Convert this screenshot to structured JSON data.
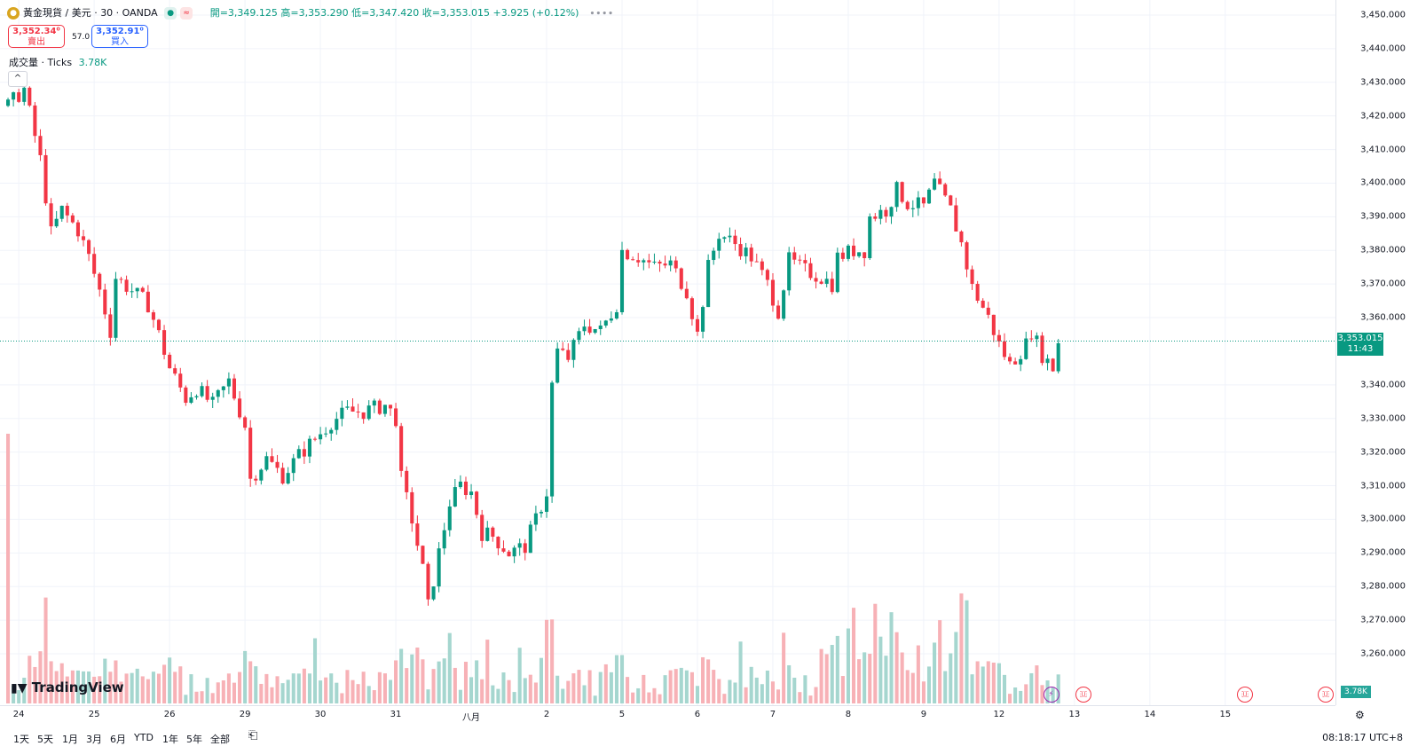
{
  "header": {
    "symbol_icon": "gold-coin-icon",
    "symbol": "黃金現貨 / 美元 · 30 · OANDA",
    "badge_1": "≈",
    "ohlc": "開=3,349.125 高=3,353.290 低=3,347.420 收=3,353.015 +3.925 (+0.12%)",
    "more": "∙∙∙∙"
  },
  "trade": {
    "sell_price": "3,352.34⁰",
    "sell_label": "賣出",
    "spread": "57.0",
    "buy_price": "3,352.91⁰",
    "buy_label": "買入"
  },
  "volume_legend": {
    "label": "成交量 · Ticks",
    "value": "3.78K"
  },
  "logo": "TradingView",
  "price_flag": {
    "price": "3,353.015",
    "countdown": "11:43"
  },
  "volume_flag": "3.78K",
  "colors": {
    "up": "#089981",
    "down": "#f23645",
    "volume_up": "#a5d6cf",
    "volume_down": "#f7b1b6"
  },
  "bottom_bar": {
    "ranges": [
      "1天",
      "5天",
      "1月",
      "3月",
      "6月",
      "YTD",
      "1年",
      "5年",
      "全部"
    ],
    "clock": "08:18:17 UTC+8"
  },
  "chart_data": {
    "type": "candlestick",
    "y_axis": {
      "ticks": [
        "3,450.000",
        "3,440.000",
        "3,430.000",
        "3,420.000",
        "3,410.000",
        "3,400.000",
        "3,390.000",
        "3,380.000",
        "3,370.000",
        "3,360.000",
        "3,340.000",
        "3,330.000",
        "3,320.000",
        "3,310.000",
        "3,300.000",
        "3,290.000",
        "3,280.000",
        "3,270.000",
        "3,260.000"
      ],
      "range": [
        3255,
        3453
      ]
    },
    "x_axis": {
      "labels": [
        "24",
        "25",
        "26",
        "29",
        "30",
        "31",
        "八月",
        "2",
        "5",
        "6",
        "7",
        "8",
        "9",
        "12",
        "13",
        "14",
        "15"
      ],
      "label_index": [
        2,
        16,
        30,
        44,
        58,
        72,
        86,
        100,
        114,
        128,
        142,
        156,
        170,
        184,
        198,
        212,
        226
      ]
    },
    "bar_count": 245,
    "close_path": [
      [
        0,
        3423
      ],
      [
        3,
        3428
      ],
      [
        6,
        3407
      ],
      [
        8,
        3385
      ],
      [
        10,
        3392
      ],
      [
        13,
        3386
      ],
      [
        15,
        3378
      ],
      [
        17,
        3368
      ],
      [
        19,
        3356
      ],
      [
        20,
        3372
      ],
      [
        23,
        3368
      ],
      [
        26,
        3364
      ],
      [
        28,
        3355
      ],
      [
        30,
        3345
      ],
      [
        33,
        3336
      ],
      [
        35,
        3339
      ],
      [
        38,
        3334
      ],
      [
        41,
        3341
      ],
      [
        44,
        3328
      ],
      [
        45,
        3312
      ],
      [
        48,
        3318
      ],
      [
        51,
        3313
      ],
      [
        54,
        3319
      ],
      [
        57,
        3324
      ],
      [
        60,
        3329
      ],
      [
        63,
        3332
      ],
      [
        66,
        3332
      ],
      [
        70,
        3334
      ],
      [
        72,
        3330
      ],
      [
        73,
        3312
      ],
      [
        75,
        3300
      ],
      [
        77,
        3285
      ],
      [
        78,
        3274
      ],
      [
        80,
        3290
      ],
      [
        82,
        3305
      ],
      [
        84,
        3310
      ],
      [
        86,
        3308
      ],
      [
        88,
        3296
      ],
      [
        90,
        3295
      ],
      [
        93,
        3290
      ],
      [
        96,
        3292
      ],
      [
        98,
        3300
      ],
      [
        100,
        3308
      ],
      [
        101,
        3340
      ],
      [
        102,
        3350
      ],
      [
        104,
        3348
      ],
      [
        107,
        3358
      ],
      [
        110,
        3356
      ],
      [
        113,
        3364
      ],
      [
        114,
        3380
      ],
      [
        117,
        3378
      ],
      [
        120,
        3375
      ],
      [
        123,
        3376
      ],
      [
        126,
        3368
      ],
      [
        128,
        3355
      ],
      [
        130,
        3375
      ],
      [
        132,
        3385
      ],
      [
        135,
        3382
      ],
      [
        138,
        3378
      ],
      [
        141,
        3370
      ],
      [
        143,
        3362
      ],
      [
        145,
        3377
      ],
      [
        148,
        3374
      ],
      [
        151,
        3372
      ],
      [
        153,
        3370
      ],
      [
        154,
        3378
      ],
      [
        157,
        3380
      ],
      [
        159,
        3380
      ],
      [
        160,
        3390
      ],
      [
        163,
        3392
      ],
      [
        165,
        3398
      ],
      [
        167,
        3394
      ],
      [
        170,
        3393
      ],
      [
        172,
        3400
      ],
      [
        175,
        3392
      ],
      [
        177,
        3382
      ],
      [
        179,
        3369
      ],
      [
        182,
        3360
      ],
      [
        184,
        3352
      ],
      [
        186,
        3346
      ],
      [
        187,
        3348
      ],
      [
        189,
        3352
      ],
      [
        190,
        3356
      ],
      [
        192,
        3349
      ],
      [
        194,
        3345
      ],
      [
        195,
        3353
      ]
    ]
  },
  "events": [
    {
      "icon": "lightning-icon",
      "bar": 194,
      "glyph": "⚡"
    },
    {
      "icon": "us-flag-icon",
      "bar": 200,
      "glyph": "🇺"
    },
    {
      "icon": "us-flag-icon",
      "bar": 230,
      "glyph": "🇺"
    },
    {
      "icon": "us-flag-icon",
      "bar": 245,
      "glyph": "🇺"
    }
  ]
}
